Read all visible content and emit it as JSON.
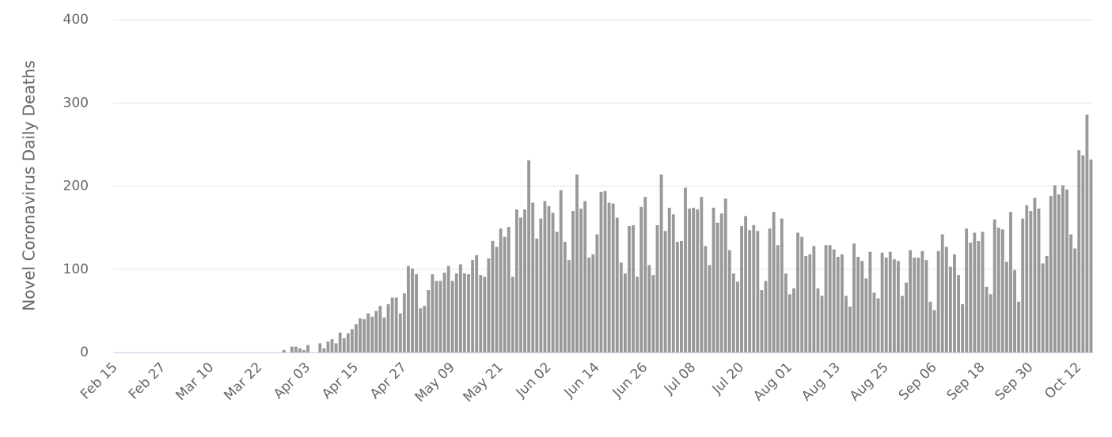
{
  "chart_data": {
    "type": "bar",
    "y_axis_title": "Novel Coronavirus Daily Deaths",
    "color": "#999999",
    "grid": true,
    "ylim": [
      0,
      400
    ],
    "yticks": [
      0,
      100,
      200,
      300,
      400
    ],
    "categories": [
      "Feb 15",
      null,
      null,
      null,
      null,
      null,
      null,
      null,
      null,
      null,
      null,
      null,
      "Feb 27",
      null,
      null,
      null,
      null,
      null,
      null,
      null,
      null,
      null,
      null,
      null,
      "Mar 10",
      null,
      null,
      null,
      null,
      null,
      null,
      null,
      null,
      null,
      null,
      null,
      "Mar 22",
      null,
      null,
      null,
      null,
      null,
      null,
      null,
      null,
      null,
      null,
      null,
      "Apr 03",
      null,
      null,
      null,
      null,
      null,
      null,
      null,
      null,
      null,
      null,
      null,
      "Apr 15",
      null,
      null,
      null,
      null,
      null,
      null,
      null,
      null,
      null,
      null,
      null,
      "Apr 27",
      null,
      null,
      null,
      null,
      null,
      null,
      null,
      null,
      null,
      null,
      null,
      "May 09",
      null,
      null,
      null,
      null,
      null,
      null,
      null,
      null,
      null,
      null,
      null,
      "May 21",
      null,
      null,
      null,
      null,
      null,
      null,
      null,
      null,
      null,
      null,
      null,
      "Jun 02",
      null,
      null,
      null,
      null,
      null,
      null,
      null,
      null,
      null,
      null,
      null,
      "Jun 14",
      null,
      null,
      null,
      null,
      null,
      null,
      null,
      null,
      null,
      null,
      null,
      "Jun 26",
      null,
      null,
      null,
      null,
      null,
      null,
      null,
      null,
      null,
      null,
      null,
      "Jul 08",
      null,
      null,
      null,
      null,
      null,
      null,
      null,
      null,
      null,
      null,
      null,
      "Jul 20",
      null,
      null,
      null,
      null,
      null,
      null,
      null,
      null,
      null,
      null,
      null,
      "Aug 01",
      null,
      null,
      null,
      null,
      null,
      null,
      null,
      null,
      null,
      null,
      null,
      "Aug 13",
      null,
      null,
      null,
      null,
      null,
      null,
      null,
      null,
      null,
      null,
      null,
      "Aug 25",
      null,
      null,
      null,
      null,
      null,
      null,
      null,
      null,
      null,
      null,
      null,
      "Sep 06",
      null,
      null,
      null,
      null,
      null,
      null,
      null,
      null,
      null,
      null,
      null,
      "Sep 18",
      null,
      null,
      null,
      null,
      null,
      null,
      null,
      null,
      null,
      null,
      null,
      "Sep 30",
      null,
      null,
      null,
      null,
      null,
      null,
      null,
      null,
      null,
      null,
      null,
      "Oct 12",
      null,
      null,
      null
    ],
    "values": [
      0,
      0,
      0,
      0,
      0,
      0,
      0,
      0,
      0,
      0,
      0,
      0,
      0,
      0,
      0,
      0,
      0,
      0,
      0,
      0,
      0,
      0,
      0,
      0,
      0,
      0,
      0,
      0,
      0,
      0,
      0,
      0,
      0,
      0,
      0,
      0,
      0,
      0,
      0,
      0,
      0,
      0,
      3,
      0,
      7,
      7,
      5,
      3,
      9,
      0,
      0,
      11,
      5,
      13,
      16,
      11,
      24,
      17,
      23,
      28,
      34,
      41,
      40,
      47,
      43,
      50,
      56,
      42,
      58,
      66,
      66,
      47,
      71,
      104,
      101,
      94,
      53,
      56,
      75,
      94,
      86,
      86,
      96,
      104,
      86,
      95,
      106,
      95,
      94,
      111,
      117,
      93,
      91,
      113,
      134,
      127,
      149,
      139,
      151,
      91,
      172,
      162,
      172,
      231,
      180,
      137,
      161,
      182,
      176,
      168,
      145,
      195,
      133,
      111,
      170,
      214,
      173,
      182,
      114,
      118,
      142,
      193,
      194,
      180,
      179,
      162,
      108,
      95,
      152,
      153,
      91,
      175,
      187,
      105,
      93,
      153,
      214,
      146,
      174,
      166,
      133,
      134,
      198,
      173,
      174,
      172,
      187,
      128,
      105,
      174,
      156,
      167,
      185,
      123,
      95,
      85,
      152,
      164,
      147,
      153,
      146,
      75,
      86,
      149,
      169,
      129,
      161,
      95,
      70,
      77,
      144,
      139,
      116,
      118,
      128,
      77,
      68,
      129,
      129,
      124,
      115,
      118,
      68,
      55,
      131,
      115,
      110,
      89,
      121,
      72,
      65,
      120,
      114,
      121,
      112,
      110,
      68,
      84,
      123,
      114,
      114,
      122,
      111,
      61,
      51,
      122,
      142,
      127,
      103,
      118,
      93,
      58,
      149,
      132,
      144,
      134,
      145,
      79,
      70,
      160,
      150,
      148,
      109,
      169,
      99,
      61,
      161,
      177,
      170,
      186,
      173,
      107,
      116,
      188,
      201,
      190,
      201,
      196,
      142,
      125,
      243,
      237,
      286,
      232
    ]
  }
}
